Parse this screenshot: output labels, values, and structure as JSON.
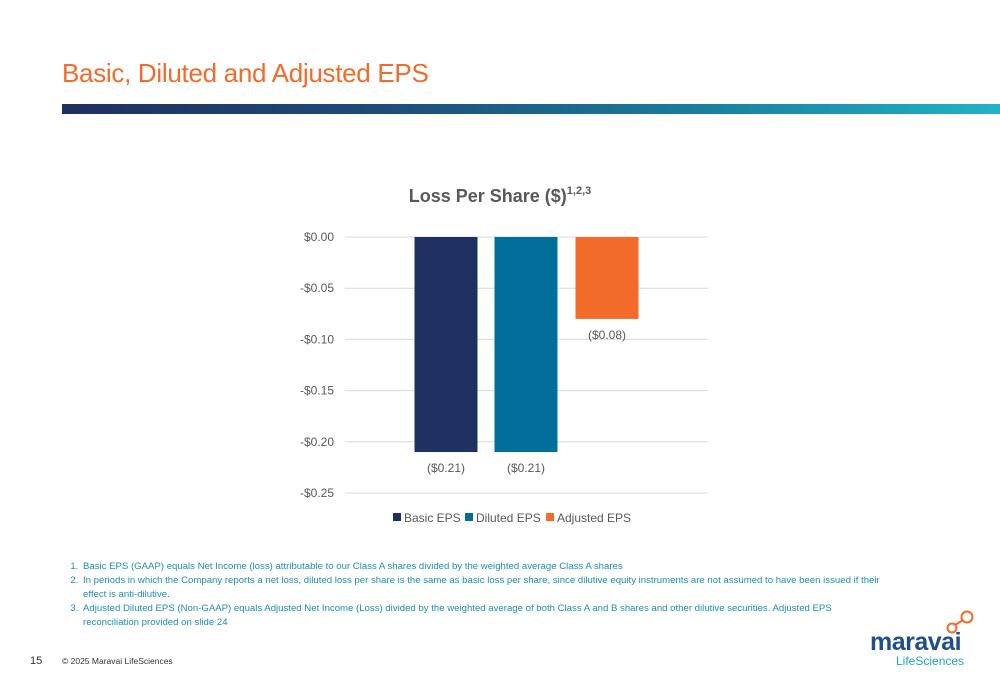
{
  "slide": {
    "title": "Basic, Diluted and Adjusted EPS",
    "page_number": "15",
    "copyright": "© 2025 Maravai LifeSciences"
  },
  "logo": {
    "word": "maravai",
    "sub": "LifeSciences"
  },
  "footnotes": [
    "Basic EPS (GAAP) equals Net Income (loss) attributable to our Class A shares divided by the weighted average Class A shares",
    "In periods in which the Company reports a net loss, diluted loss per share is the same as basic loss per share, since dilutive equity instruments are not assumed to have been issued if their effect is anti-dilutive.",
    "Adjusted Diluted EPS (Non-GAAP) equals Adjusted Net Income (Loss) divided by the weighted average of both Class A and B shares and other dilutive securities. Adjusted EPS reconciliation provided on slide 24"
  ],
  "colors": {
    "basic": "#1f3160",
    "diluted": "#006f99",
    "adjusted": "#f26b2a",
    "title_orange": "#f26b2a",
    "axis_text": "#595959"
  },
  "chart_data": {
    "type": "bar",
    "title": "Loss Per Share ($)",
    "title_superscript": "1,2,3",
    "xlabel": "",
    "ylabel": "",
    "ylim": [
      -0.25,
      0
    ],
    "yticks": [
      0,
      -0.05,
      -0.1,
      -0.15,
      -0.2,
      -0.25
    ],
    "ytick_labels": [
      "$0.00",
      "-$0.05",
      "-$0.10",
      "-$0.15",
      "-$0.20",
      "-$0.25"
    ],
    "grid": true,
    "legend_position": "bottom",
    "series": [
      {
        "name": "Basic EPS",
        "value": -0.21,
        "label": "($0.21)",
        "color": "#1f3160"
      },
      {
        "name": "Diluted EPS",
        "value": -0.21,
        "label": "($0.21)",
        "color": "#006f99"
      },
      {
        "name": "Adjusted EPS",
        "value": -0.08,
        "label": "($0.08)",
        "color": "#f26b2a"
      }
    ]
  }
}
